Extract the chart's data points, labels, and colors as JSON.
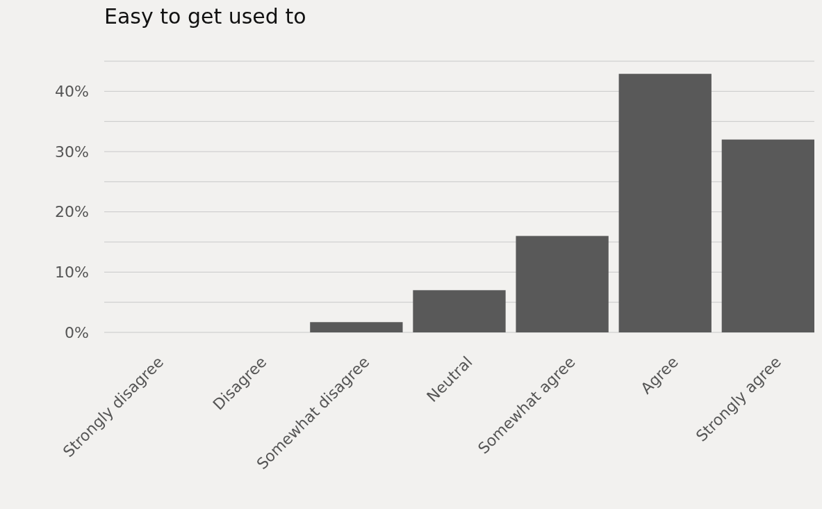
{
  "chart_data": {
    "type": "bar",
    "title": "Easy to get used to",
    "categories": [
      "Strongly disagree",
      "Disagree",
      "Somewhat disagree",
      "Neutral",
      "Somewhat agree",
      "Agree",
      "Strongly agree"
    ],
    "values": [
      0,
      0,
      1.7,
      7,
      16,
      42.9,
      32
    ],
    "color": "#595959",
    "ylim": [
      0,
      45
    ],
    "yticks": [
      {
        "value": 0,
        "label": "0%"
      },
      {
        "value": 5,
        "label": null
      },
      {
        "value": 10,
        "label": "10%"
      },
      {
        "value": 15,
        "label": null
      },
      {
        "value": 20,
        "label": "20%"
      },
      {
        "value": 25,
        "label": null
      },
      {
        "value": 30,
        "label": "30%"
      },
      {
        "value": 35,
        "label": null
      },
      {
        "value": 40,
        "label": "40%"
      },
      {
        "value": 45,
        "label": null
      }
    ],
    "grid": "y"
  }
}
